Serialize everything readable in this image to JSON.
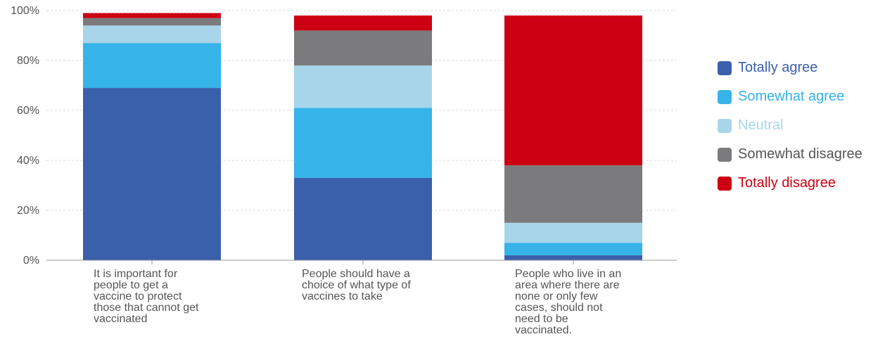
{
  "chart_data": {
    "type": "bar",
    "stacked": true,
    "categories": [
      "It is important for people to get a vaccine to protect those that cannot get vaccinated",
      "People should have a choice of what type of vaccines to take",
      "People who live in an area where there are none or only few cases, should not need to be vaccinated."
    ],
    "category_lines": [
      [
        "It is important for",
        "people to get a",
        "vaccine to protect",
        "those that cannot get",
        "vaccinated"
      ],
      [
        "People should have a",
        "choice of what type of",
        "vaccines to take"
      ],
      [
        "People who live in an",
        "area where there are",
        "none or only few",
        "cases, should not",
        "need to be",
        "vaccinated."
      ]
    ],
    "series": [
      {
        "name": "Totally agree",
        "color": "#3a5fab",
        "values": [
          69,
          33,
          2
        ]
      },
      {
        "name": "Somewhat agree",
        "color": "#36b3e8",
        "values": [
          18,
          28,
          5
        ]
      },
      {
        "name": "Neutral",
        "color": "#a8d5ea",
        "values": [
          7,
          17,
          8
        ]
      },
      {
        "name": "Somewhat disagree",
        "color": "#7b7b7d",
        "values": [
          3,
          14,
          23
        ]
      },
      {
        "name": "Totally disagree",
        "color": "#cc0012",
        "values": [
          2,
          6,
          60
        ]
      }
    ],
    "yticks": [
      "0%",
      "20%",
      "40%",
      "60%",
      "80%",
      "100%"
    ],
    "ylim": [
      0,
      100
    ],
    "grid": true,
    "legend_position": "right",
    "legend_text_colors": [
      "#3a5fab",
      "#36b3e8",
      "#a8d5ea",
      "#555555",
      "#cc0012"
    ]
  }
}
